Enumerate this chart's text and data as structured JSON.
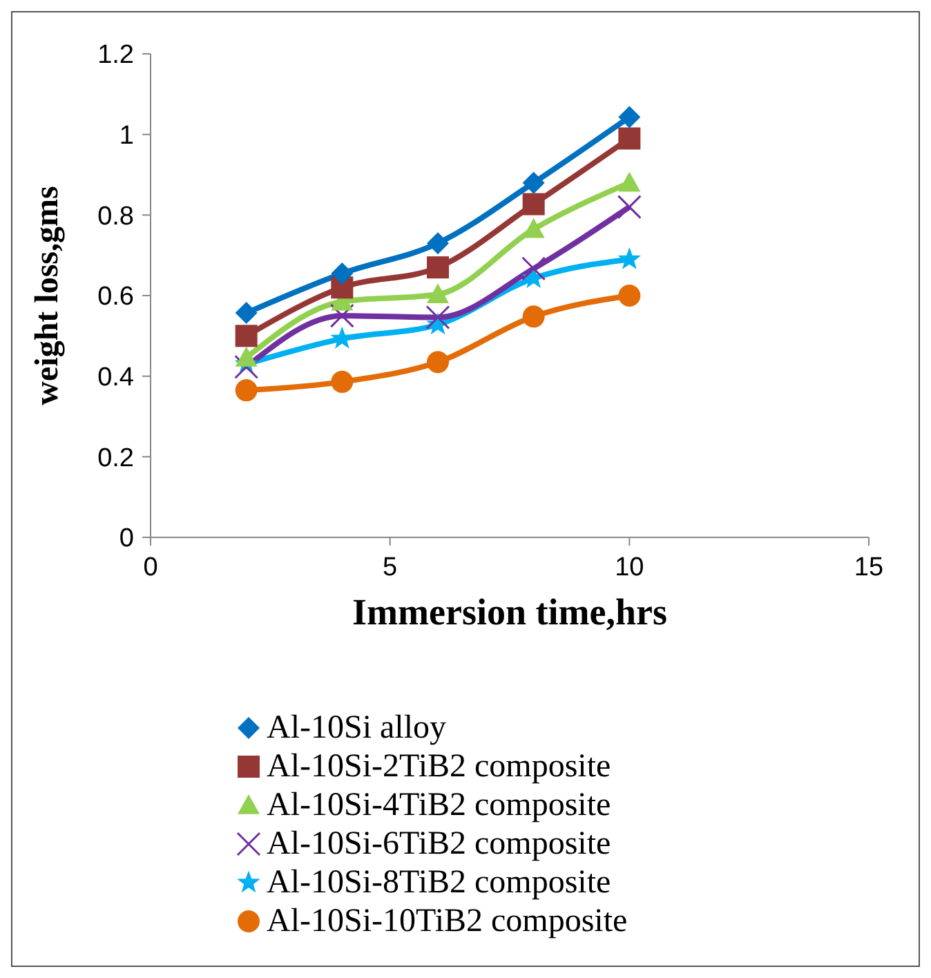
{
  "chart_data": {
    "type": "line",
    "xlabel": "Immersion time,hrs",
    "ylabel": "weight loss,gms",
    "x": [
      2,
      4,
      6,
      8,
      10
    ],
    "series": [
      {
        "name": "Al-10Si alloy",
        "color": "#0070c0",
        "marker": "diamond",
        "values": [
          0.557,
          0.655,
          0.73,
          0.88,
          1.043
        ]
      },
      {
        "name": "Al-10Si-2TiB2 composite",
        "color": "#953735",
        "marker": "square",
        "values": [
          0.5,
          0.62,
          0.67,
          0.827,
          0.99
        ]
      },
      {
        "name": "Al-10Si-4TiB2 composite",
        "color": "#92d050",
        "marker": "triangle",
        "values": [
          0.446,
          0.585,
          0.603,
          0.765,
          0.88
        ]
      },
      {
        "name": "Al-10Si-6TiB2 composite",
        "color": "#7030a0",
        "marker": "cross",
        "values": [
          0.423,
          0.55,
          0.546,
          0.667,
          0.82
        ]
      },
      {
        "name": "Al-10Si-8TiB2 composite",
        "color": "#00b0f0",
        "marker": "star",
        "values": [
          0.43,
          0.493,
          0.528,
          0.643,
          0.69
        ]
      },
      {
        "name": "Al-10Si-10TiB2 composite",
        "color": "#e36c09",
        "marker": "circle",
        "values": [
          0.365,
          0.386,
          0.435,
          0.548,
          0.6
        ]
      }
    ],
    "xlim": [
      0,
      15
    ],
    "xticks": [
      0,
      5,
      10,
      15
    ],
    "ylim": [
      0,
      1.2
    ],
    "yticks": [
      0,
      0.2,
      0.4,
      0.6,
      0.8,
      1,
      1.2
    ],
    "grid": false,
    "legend": "bottom",
    "line_style": "solid"
  }
}
